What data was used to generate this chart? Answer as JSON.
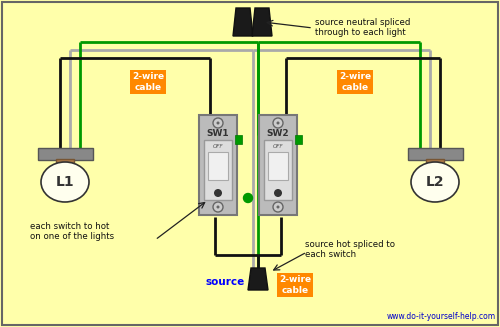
{
  "bg_color": "#FFFFAA",
  "border_color": "#555555",
  "watermark": "www.do-it-yourself-help.com",
  "watermark_color": "#0000CC",
  "label_orange_bg": "#FF8800",
  "label_blue_text": "#0000FF",
  "wire_black": "#111111",
  "wire_white": "#AAAAAA",
  "wire_green": "#009900",
  "annotation1": "source neutral spliced\nthrough to each light",
  "annotation2": "each switch to hot\non one of the lights",
  "annotation3": "source hot spliced to\neach switch",
  "sw1_label": "SW1",
  "sw2_label": "SW2",
  "l1_label": "L1",
  "l2_label": "L2",
  "off_label": "OFF",
  "source_label": "source",
  "cable_label": "2-wire\ncable"
}
